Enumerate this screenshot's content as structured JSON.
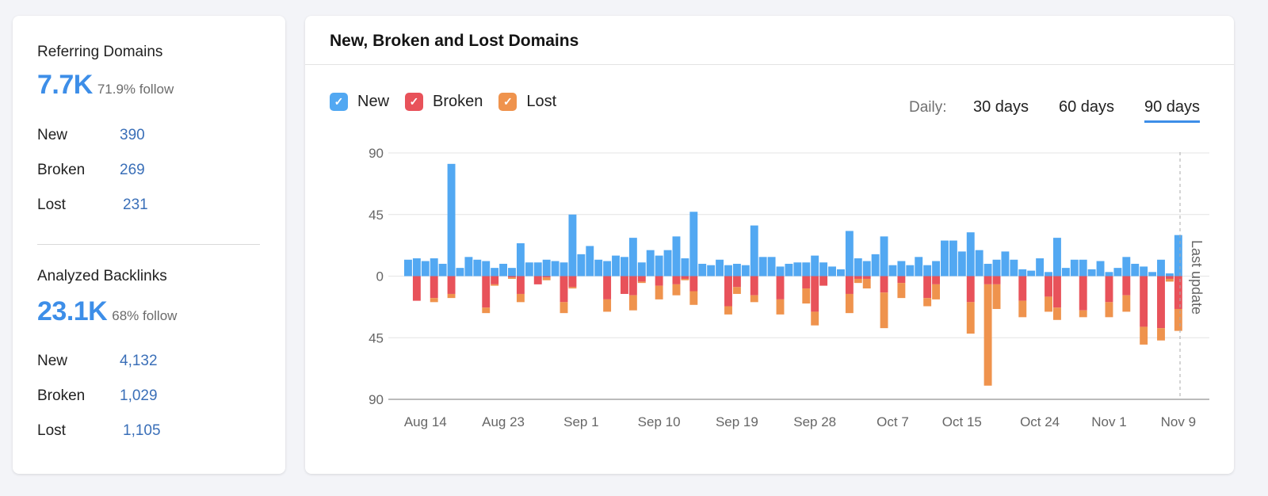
{
  "referring_domains": {
    "title": "Referring Domains",
    "total": "7.7K",
    "follow": "71.9% follow",
    "rows": [
      {
        "label": "New",
        "value": "390"
      },
      {
        "label": "Broken",
        "value": "269"
      },
      {
        "label": "Lost",
        "value": "231"
      }
    ]
  },
  "analyzed_backlinks": {
    "title": "Analyzed Backlinks",
    "total": "23.1K",
    "follow": "68% follow",
    "rows": [
      {
        "label": "New",
        "value": "4,132"
      },
      {
        "label": "Broken",
        "value": "1,029"
      },
      {
        "label": "Lost",
        "value": "1,105"
      }
    ]
  },
  "panel": {
    "title": "New, Broken and Lost Domains",
    "legend": [
      {
        "label": "New",
        "color": "#52a8f2",
        "checked": true
      },
      {
        "label": "Broken",
        "color": "#e8525a",
        "checked": true
      },
      {
        "label": "Lost",
        "color": "#ef934d",
        "checked": true
      }
    ],
    "period_label": "Daily:",
    "periods": [
      {
        "label": "30 days",
        "active": false
      },
      {
        "label": "60 days",
        "active": false
      },
      {
        "label": "90 days",
        "active": true
      }
    ]
  },
  "chart_data": {
    "type": "bar",
    "stacked": true,
    "y_ticks": [
      "90",
      "45",
      "0",
      "45",
      "90"
    ],
    "ylim": [
      -90,
      90
    ],
    "grid": true,
    "annotation": "Last update",
    "x_tick_labels": [
      "Aug 14",
      "Aug 23",
      "Sep 1",
      "Sep 10",
      "Sep 19",
      "Sep 28",
      "Oct 7",
      "Oct 15",
      "Oct 24",
      "Nov 1",
      "Nov 9"
    ],
    "x": [
      "Aug 12",
      "Aug 13",
      "Aug 14",
      "Aug 15",
      "Aug 16",
      "Aug 17",
      "Aug 18",
      "Aug 19",
      "Aug 20",
      "Aug 21",
      "Aug 22",
      "Aug 23",
      "Aug 24",
      "Aug 25",
      "Aug 26",
      "Aug 27",
      "Aug 28",
      "Aug 29",
      "Aug 30",
      "Aug 31",
      "Sep 1",
      "Sep 2",
      "Sep 3",
      "Sep 4",
      "Sep 5",
      "Sep 6",
      "Sep 7",
      "Sep 8",
      "Sep 9",
      "Sep 10",
      "Sep 11",
      "Sep 12",
      "Sep 13",
      "Sep 14",
      "Sep 15",
      "Sep 16",
      "Sep 17",
      "Sep 18",
      "Sep 19",
      "Sep 20",
      "Sep 21",
      "Sep 22",
      "Sep 23",
      "Sep 24",
      "Sep 25",
      "Sep 26",
      "Sep 27",
      "Sep 28",
      "Sep 29",
      "Sep 30",
      "Oct 1",
      "Oct 2",
      "Oct 3",
      "Oct 4",
      "Oct 5",
      "Oct 6",
      "Oct 7",
      "Oct 8",
      "Oct 9",
      "Oct 10",
      "Oct 11",
      "Oct 12",
      "Oct 13",
      "Oct 14",
      "Oct 15",
      "Oct 16",
      "Oct 17",
      "Oct 18",
      "Oct 19",
      "Oct 20",
      "Oct 21",
      "Oct 22",
      "Oct 23",
      "Oct 24",
      "Oct 25",
      "Oct 26",
      "Oct 27",
      "Oct 28",
      "Oct 29",
      "Oct 30",
      "Oct 31",
      "Nov 1",
      "Nov 2",
      "Nov 3",
      "Nov 4",
      "Nov 5",
      "Nov 6",
      "Nov 7",
      "Nov 8",
      "Nov 9"
    ],
    "series": [
      {
        "name": "New",
        "values": [
          12,
          13,
          11,
          13,
          9,
          82,
          6,
          14,
          12,
          11,
          6,
          9,
          6,
          24,
          10,
          10,
          12,
          11,
          10,
          45,
          16,
          22,
          12,
          11,
          15,
          14,
          28,
          10,
          19,
          15,
          19,
          29,
          13,
          47,
          9,
          8,
          12,
          8,
          9,
          8,
          37,
          14,
          14,
          7,
          9,
          10,
          10,
          15,
          10,
          7,
          5,
          33,
          13,
          11,
          16,
          29,
          8,
          11,
          8,
          14,
          8,
          11,
          26,
          26,
          18,
          32,
          19,
          9,
          12,
          18,
          12,
          5,
          4,
          13,
          3,
          28,
          6,
          12,
          12,
          5,
          11,
          3,
          6,
          14,
          9,
          7,
          3,
          12,
          2,
          30
        ]
      },
      {
        "name": "Broken",
        "values": [
          0,
          -18,
          0,
          -16,
          0,
          -13,
          0,
          0,
          0,
          -23,
          -6,
          0,
          -1,
          -13,
          0,
          -6,
          -1,
          0,
          -19,
          -8,
          0,
          0,
          0,
          -17,
          0,
          -13,
          -14,
          -4,
          0,
          -7,
          0,
          -6,
          -2,
          -11,
          0,
          0,
          0,
          -22,
          -8,
          0,
          -14,
          0,
          0,
          -17,
          0,
          0,
          -9,
          -26,
          -7,
          0,
          0,
          -13,
          -2,
          -2,
          0,
          -12,
          0,
          -5,
          0,
          0,
          -16,
          -6,
          0,
          0,
          0,
          -19,
          0,
          -6,
          -6,
          0,
          0,
          -18,
          0,
          0,
          -15,
          -23,
          0,
          0,
          -25,
          0,
          0,
          -19,
          0,
          -14,
          0,
          -37,
          0,
          -38,
          -2,
          -24
        ]
      },
      {
        "name": "Lost",
        "values": [
          0,
          0,
          0,
          -3,
          0,
          -3,
          0,
          0,
          0,
          -4,
          -1,
          0,
          -1,
          -6,
          0,
          0,
          -2,
          0,
          -8,
          -1,
          0,
          0,
          0,
          -9,
          0,
          0,
          -11,
          -1,
          0,
          -10,
          0,
          -8,
          -1,
          -10,
          0,
          0,
          0,
          -6,
          -5,
          0,
          -5,
          0,
          0,
          -11,
          0,
          0,
          -11,
          -10,
          0,
          0,
          0,
          -14,
          -3,
          -7,
          0,
          -26,
          0,
          -11,
          0,
          0,
          -6,
          -11,
          0,
          0,
          0,
          -23,
          0,
          -74,
          -18,
          0,
          0,
          -12,
          0,
          0,
          -11,
          -9,
          0,
          0,
          -5,
          0,
          0,
          -11,
          0,
          -12,
          0,
          -13,
          0,
          -9,
          -2,
          -16
        ]
      }
    ]
  }
}
